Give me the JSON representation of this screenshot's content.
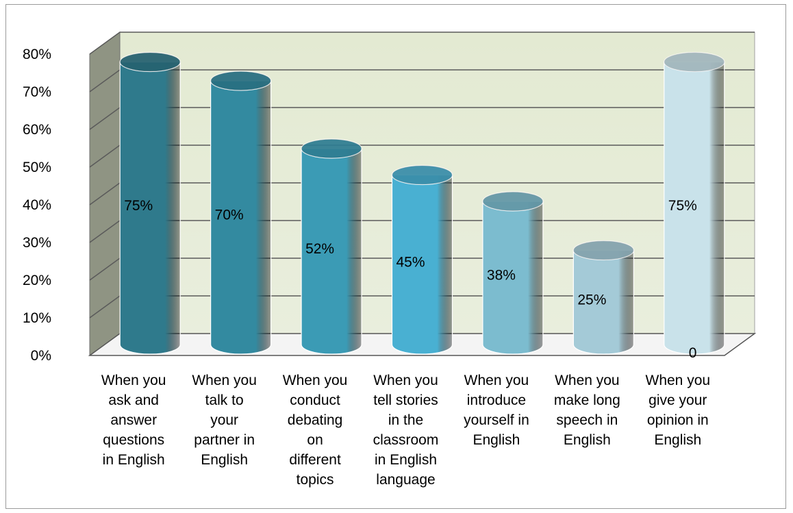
{
  "chart_data": {
    "type": "bar",
    "style": "3d-cylinder",
    "categories": [
      [
        "When you",
        "ask and",
        "answer",
        "questions",
        "in English"
      ],
      [
        "When you",
        "talk to",
        "your",
        "partner in",
        "English"
      ],
      [
        "When you",
        "conduct",
        "debating",
        "on",
        "different",
        "topics"
      ],
      [
        "When you",
        "tell stories",
        "in the",
        "classroom",
        "in English",
        "language"
      ],
      [
        "When you",
        "introduce",
        "yourself in",
        "English"
      ],
      [
        "When you",
        "make long",
        "speech in",
        "English"
      ],
      [
        "When you",
        "give your",
        "opinion in",
        "English"
      ]
    ],
    "values": [
      75,
      70,
      52,
      45,
      38,
      25,
      75
    ],
    "data_labels": [
      "75%",
      "70%",
      "52%",
      "45%",
      "38%",
      "25%",
      "75%"
    ],
    "extra_label": "0",
    "ylim": [
      0,
      80
    ],
    "yticks": [
      "0%",
      "10%",
      "20%",
      "30%",
      "40%",
      "50%",
      "60%",
      "70%",
      "80%"
    ],
    "grid": true,
    "legend": "none",
    "colors": {
      "bars": [
        "#2f7a8c",
        "#338aa0",
        "#3b9bb5",
        "#49b0d2",
        "#7cbccf",
        "#a4cad7",
        "#c9e2ea"
      ],
      "wall": "#e9eedd",
      "side_wall": "#8f9483",
      "gridline": "#5a5a5a"
    }
  }
}
